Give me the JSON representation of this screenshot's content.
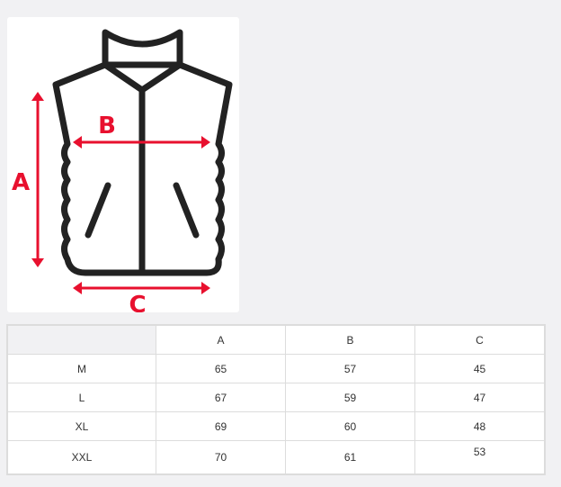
{
  "diagram": {
    "labels": {
      "a": "A",
      "b": "B",
      "c": "C"
    },
    "outline_color": "#222222",
    "measure_color": "#e8102e"
  },
  "table": {
    "headers": [
      "",
      "A",
      "B",
      "C"
    ],
    "rows": [
      {
        "size": "M",
        "a": "65",
        "b": "57",
        "c": "45"
      },
      {
        "size": "L",
        "a": "67",
        "b": "59",
        "c": "47"
      },
      {
        "size": "XL",
        "a": "69",
        "b": "60",
        "c": "48"
      },
      {
        "size": "XXL",
        "a": "70",
        "b": "61",
        "c": "53"
      }
    ]
  }
}
